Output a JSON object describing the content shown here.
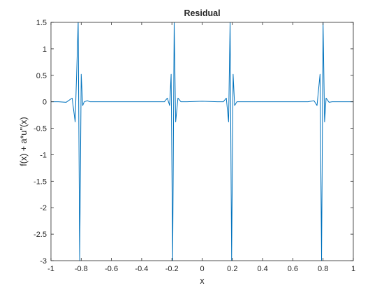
{
  "chart_data": {
    "type": "line",
    "title": "Residual",
    "xlabel": "x",
    "ylabel": "f(x) + a*u''(x)",
    "xlim": [
      -1,
      1
    ],
    "ylim": [
      -3,
      1.5
    ],
    "x_ticks": [
      -1,
      -0.8,
      -0.6,
      -0.4,
      -0.2,
      0,
      0.2,
      0.4,
      0.6,
      0.8,
      1
    ],
    "x_tick_labels": [
      "-1",
      "-0.8",
      "-0.6",
      "-0.4",
      "-0.2",
      "0",
      "0.2",
      "0.4",
      "0.6",
      "0.8",
      "1"
    ],
    "y_ticks": [
      -3,
      -2.5,
      -2,
      -1.5,
      -1,
      -0.5,
      0,
      0.5,
      1,
      1.5
    ],
    "y_tick_labels": [
      "-3",
      "-2.5",
      "-2",
      "-1.5",
      "-1",
      "-0.5",
      "0",
      "0.5",
      "1",
      "1.5"
    ],
    "grid": false,
    "series": [
      {
        "color": "#0072BD",
        "x": [
          -1.0,
          -0.95,
          -0.9,
          -0.86,
          -0.84,
          -0.82,
          -0.81,
          -0.8,
          -0.79,
          -0.78,
          -0.76,
          -0.74,
          -0.7,
          -0.6,
          -0.5,
          -0.4,
          -0.3,
          -0.25,
          -0.23,
          -0.215,
          -0.205,
          -0.195,
          -0.185,
          -0.175,
          -0.16,
          -0.14,
          -0.1,
          0.0,
          0.1,
          0.14,
          0.16,
          0.175,
          0.185,
          0.195,
          0.205,
          0.215,
          0.23,
          0.25,
          0.3,
          0.4,
          0.5,
          0.6,
          0.7,
          0.74,
          0.76,
          0.78,
          0.79,
          0.8,
          0.81,
          0.82,
          0.84,
          0.86,
          0.9,
          0.95,
          1.0
        ],
        "y": [
          0.0,
          0.0,
          -0.01,
          0.07,
          -0.38,
          1.5,
          -3.0,
          0.52,
          -0.07,
          0.0,
          0.02,
          0.0,
          0.0,
          0.0,
          0.0,
          0.0,
          0.0,
          0.0,
          0.07,
          -0.07,
          0.52,
          -3.0,
          1.5,
          -0.38,
          0.07,
          0.0,
          0.0,
          0.01,
          0.0,
          0.0,
          0.07,
          -0.38,
          1.5,
          -3.0,
          0.52,
          -0.07,
          0.0,
          0.0,
          0.0,
          0.0,
          0.0,
          0.0,
          0.0,
          0.02,
          -0.07,
          0.52,
          -3.0,
          1.5,
          -0.38,
          0.07,
          -0.01,
          0.0,
          0.0,
          0.0,
          0.0
        ]
      }
    ]
  }
}
